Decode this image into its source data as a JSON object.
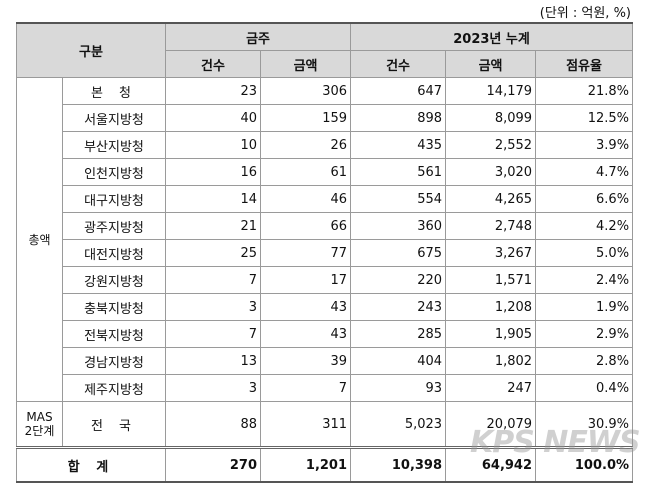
{
  "unit_note": "(단위 : 억원, %)",
  "table": {
    "header": {
      "category": "구분",
      "weekly": "금주",
      "cumulative": "2023년 누계",
      "sub": [
        "건수",
        "금액",
        "건수",
        "금액",
        "점유율"
      ]
    },
    "groups": [
      {
        "label": [
          "총액"
        ],
        "rows": [
          {
            "name": "본 청",
            "cells": [
              "23",
              "306",
              "647",
              "14,179",
              "21.8%"
            ]
          },
          {
            "name": "서울지방청",
            "cells": [
              "40",
              "159",
              "898",
              "8,099",
              "12.5%"
            ]
          },
          {
            "name": "부산지방청",
            "cells": [
              "10",
              "26",
              "435",
              "2,552",
              "3.9%"
            ]
          },
          {
            "name": "인천지방청",
            "cells": [
              "16",
              "61",
              "561",
              "3,020",
              "4.7%"
            ]
          },
          {
            "name": "대구지방청",
            "cells": [
              "14",
              "46",
              "554",
              "4,265",
              "6.6%"
            ]
          },
          {
            "name": "광주지방청",
            "cells": [
              "21",
              "66",
              "360",
              "2,748",
              "4.2%"
            ]
          },
          {
            "name": "대전지방청",
            "cells": [
              "25",
              "77",
              "675",
              "3,267",
              "5.0%"
            ]
          },
          {
            "name": "강원지방청",
            "cells": [
              "7",
              "17",
              "220",
              "1,571",
              "2.4%"
            ]
          },
          {
            "name": "충북지방청",
            "cells": [
              "3",
              "43",
              "243",
              "1,208",
              "1.9%"
            ]
          },
          {
            "name": "전북지방청",
            "cells": [
              "7",
              "43",
              "285",
              "1,905",
              "2.9%"
            ]
          },
          {
            "name": "경남지방청",
            "cells": [
              "13",
              "39",
              "404",
              "1,802",
              "2.8%"
            ]
          },
          {
            "name": "제주지방청",
            "cells": [
              "3",
              "7",
              "93",
              "247",
              "0.4%"
            ]
          }
        ]
      },
      {
        "label": [
          "MAS",
          "2단계"
        ],
        "rows": [
          {
            "name": "전 국",
            "cells": [
              "88",
              "311",
              "5,023",
              "20,079",
              "30.9%"
            ]
          }
        ]
      }
    ],
    "total": {
      "label": "합 계",
      "cells": [
        "270",
        "1,201",
        "10,398",
        "64,942",
        "100.0%"
      ]
    }
  },
  "watermark": "KPS NEWS"
}
